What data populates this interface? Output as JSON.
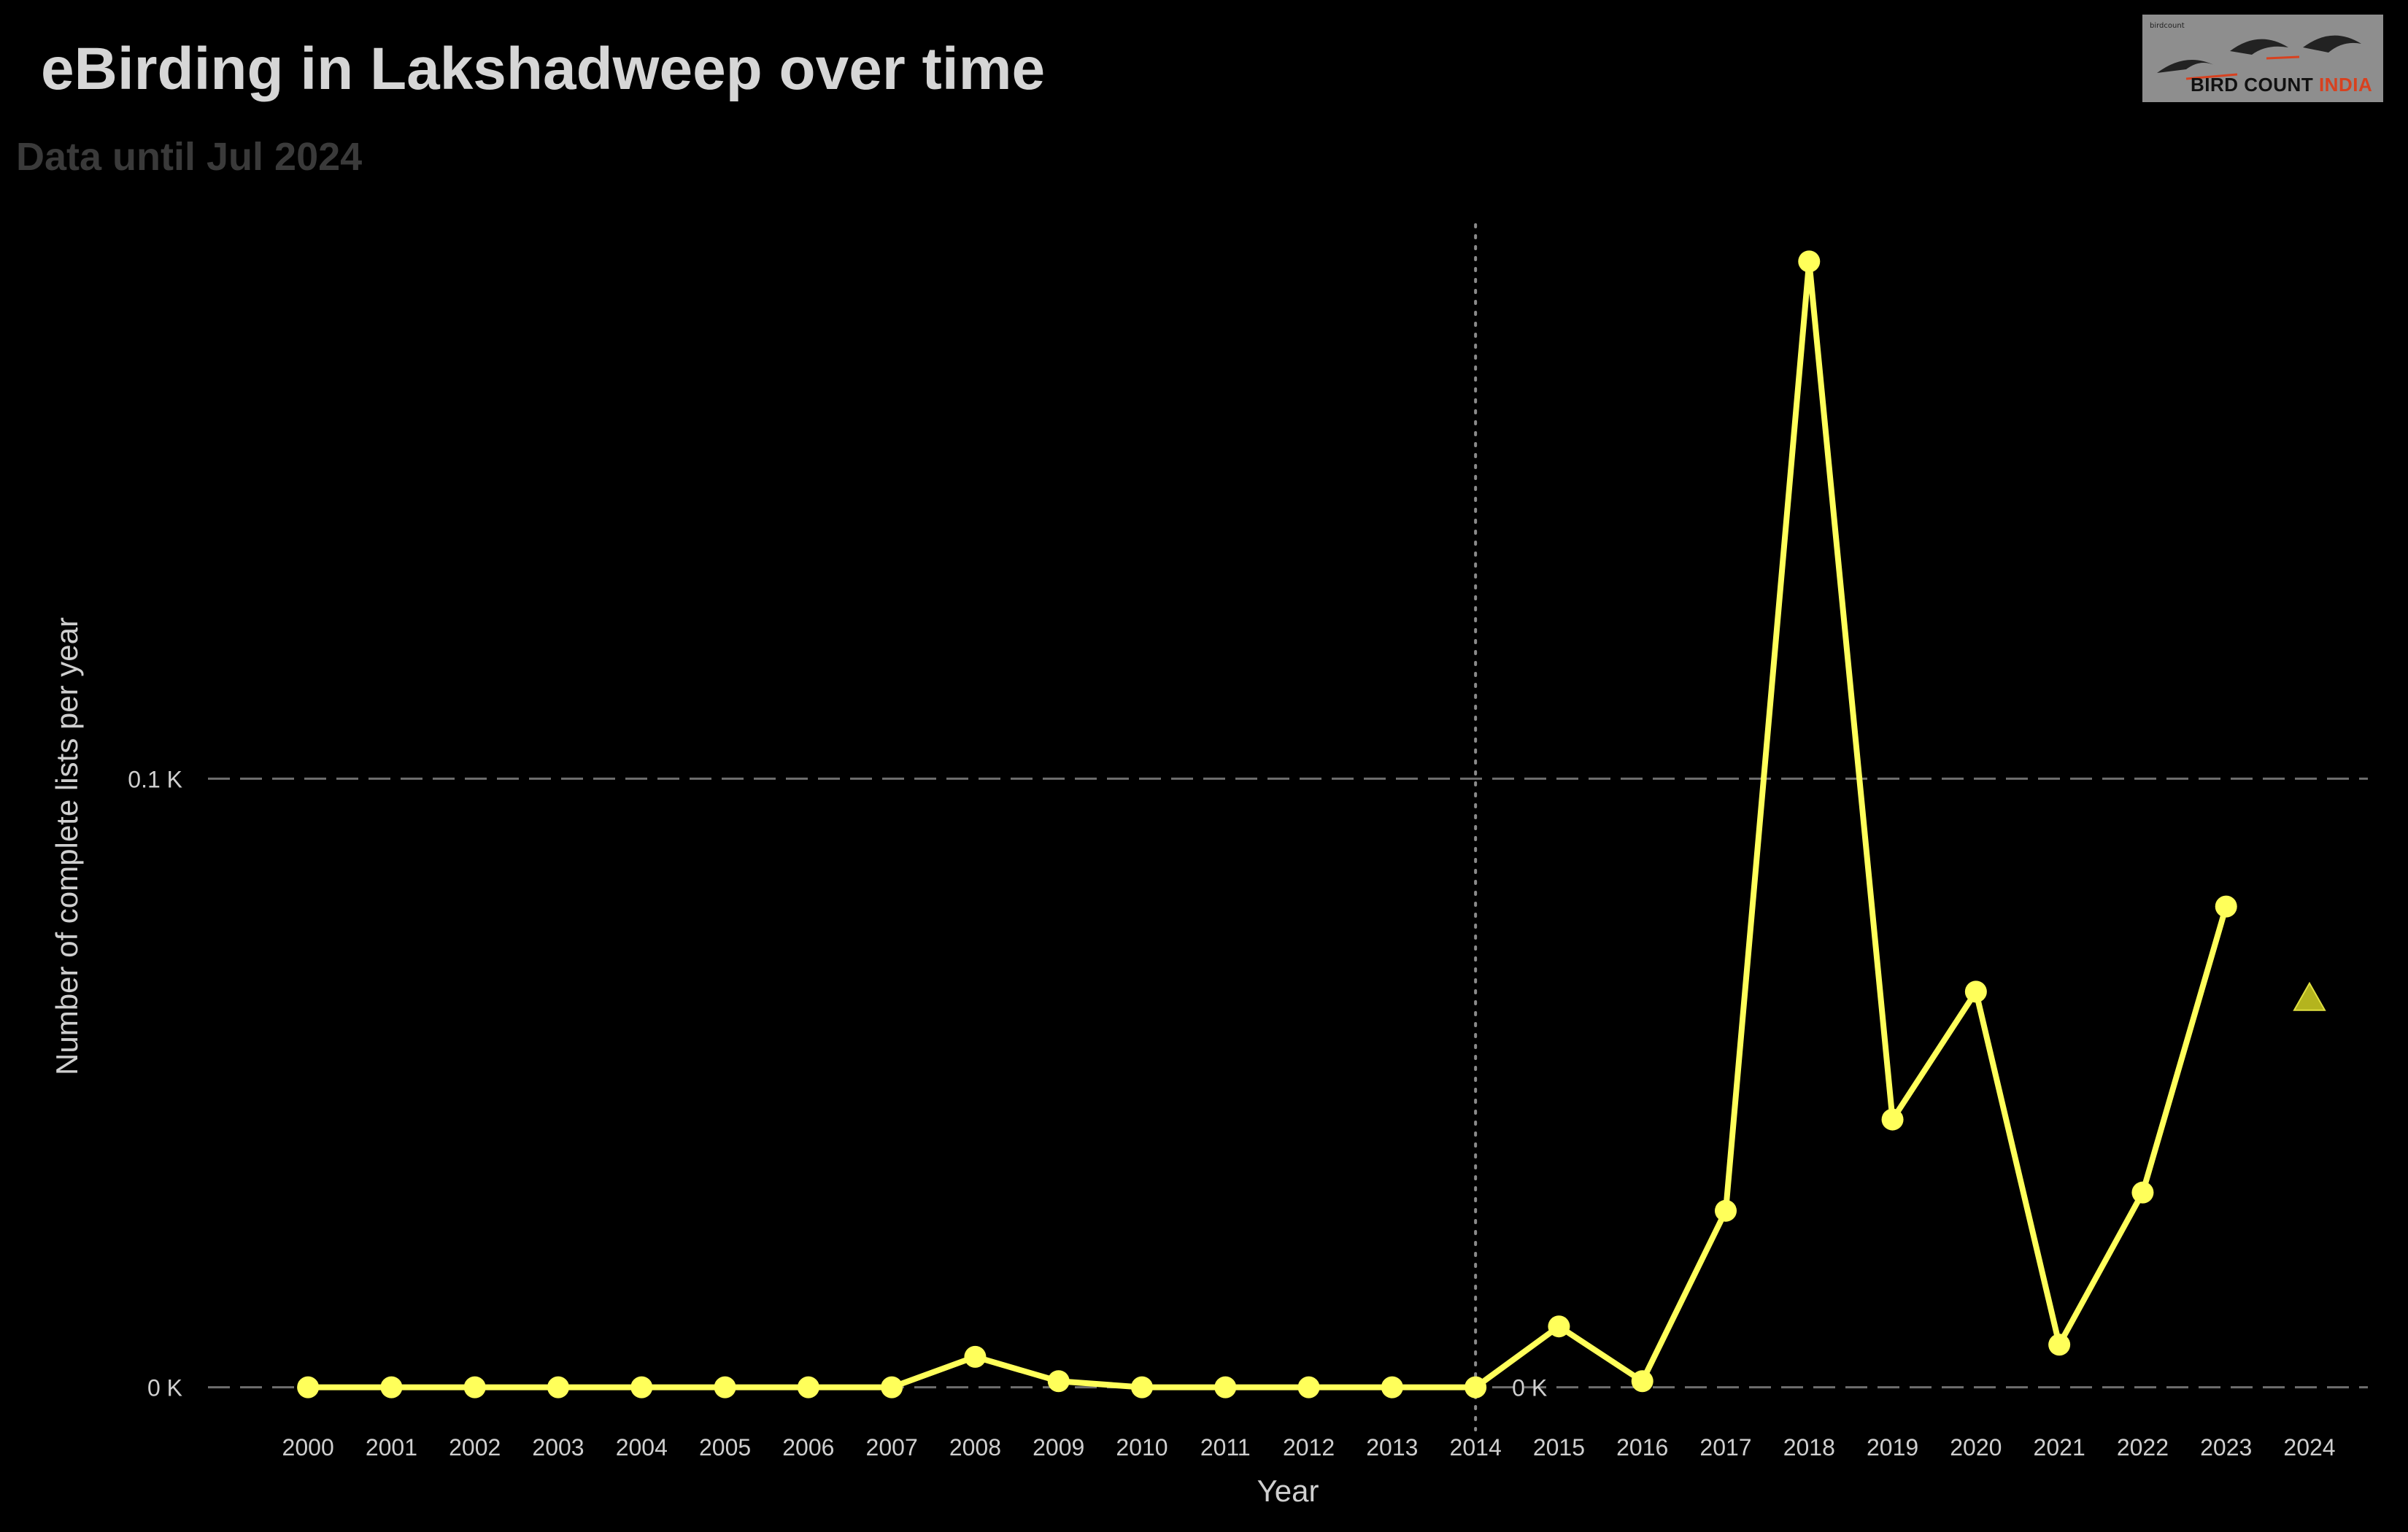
{
  "title": "eBirding in Lakshadweep over time",
  "subtitle": "Data until Jul 2024",
  "logo": {
    "small_text": "birdcount",
    "word1": "BIRD COUNT",
    "word2": "INDIA"
  },
  "colors": {
    "background": "#000000",
    "line": "#ffff5a",
    "triangle": "#b4b41e",
    "grid": "#6e6e6e",
    "text": "#cfcfcf"
  },
  "chart_data": {
    "type": "line",
    "xlabel": "Year",
    "ylabel": "Number of complete lists per year",
    "x": [
      2000,
      2001,
      2002,
      2003,
      2004,
      2005,
      2006,
      2007,
      2008,
      2009,
      2010,
      2011,
      2012,
      2013,
      2014,
      2015,
      2016,
      2017,
      2018,
      2019,
      2020,
      2021,
      2022,
      2023
    ],
    "values": [
      0,
      0,
      0,
      0,
      0,
      0,
      0,
      0,
      5,
      1,
      0,
      0,
      0,
      0,
      0,
      10,
      1,
      29,
      185,
      44,
      65,
      7,
      32,
      79
    ],
    "partial_year": {
      "x": 2024,
      "value": 64,
      "marker": "triangle"
    },
    "yticks": [
      {
        "value": 0,
        "label": "0 K"
      },
      {
        "value": 100,
        "label": "0.1 K"
      }
    ],
    "ylim": [
      -7,
      192
    ],
    "xlim": [
      1998.8,
      2024.7
    ],
    "reference_line": {
      "x": 2014,
      "label": "0 K"
    },
    "grid": "horizontal dashed at y ticks"
  }
}
